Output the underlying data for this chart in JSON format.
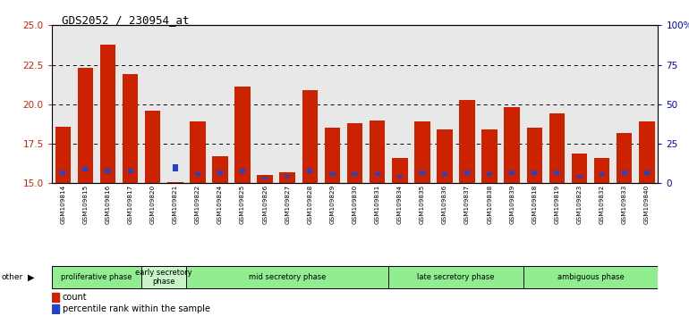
{
  "title": "GDS2052 / 230954_at",
  "samples": [
    "GSM109814",
    "GSM109815",
    "GSM109816",
    "GSM109817",
    "GSM109820",
    "GSM109821",
    "GSM109822",
    "GSM109824",
    "GSM109825",
    "GSM109826",
    "GSM109827",
    "GSM109828",
    "GSM109829",
    "GSM109830",
    "GSM109831",
    "GSM109834",
    "GSM109835",
    "GSM109836",
    "GSM109837",
    "GSM109838",
    "GSM109839",
    "GSM109818",
    "GSM109819",
    "GSM109823",
    "GSM109832",
    "GSM109833",
    "GSM109840"
  ],
  "count_values": [
    18.6,
    22.3,
    23.8,
    21.9,
    19.6,
    15.1,
    18.9,
    16.7,
    21.1,
    15.5,
    15.7,
    20.9,
    18.5,
    18.8,
    19.0,
    16.6,
    18.9,
    18.4,
    20.3,
    18.4,
    19.8,
    18.5,
    19.4,
    16.9,
    16.6,
    18.2,
    18.9
  ],
  "percentile_values": [
    15.55,
    15.75,
    15.65,
    15.65,
    15.45,
    15.75,
    15.45,
    15.55,
    15.65,
    15.25,
    15.35,
    15.65,
    15.45,
    15.45,
    15.45,
    15.35,
    15.55,
    15.45,
    15.55,
    15.45,
    15.55,
    15.55,
    15.55,
    15.35,
    15.45,
    15.55,
    15.55
  ],
  "blue_heights": [
    0.28,
    0.28,
    0.28,
    0.28,
    0.0,
    0.45,
    0.22,
    0.28,
    0.28,
    0.18,
    0.2,
    0.28,
    0.22,
    0.22,
    0.22,
    0.2,
    0.28,
    0.22,
    0.28,
    0.22,
    0.28,
    0.28,
    0.28,
    0.2,
    0.22,
    0.28,
    0.28
  ],
  "ymin": 15.0,
  "ymax": 25.0,
  "yticks": [
    15,
    17.5,
    20,
    22.5,
    25
  ],
  "right_ylabels": [
    "0",
    "25",
    "50",
    "75",
    "100%"
  ],
  "phase_groups": [
    {
      "label": "proliferative phase",
      "start": 0,
      "end": 4,
      "color": "#90ee90"
    },
    {
      "label": "early secretory\nphase",
      "start": 4,
      "end": 6,
      "color": "#c8f5c8"
    },
    {
      "label": "mid secretory phase",
      "start": 6,
      "end": 15,
      "color": "#90ee90"
    },
    {
      "label": "late secretory phase",
      "start": 15,
      "end": 21,
      "color": "#90ee90"
    },
    {
      "label": "ambiguous phase",
      "start": 21,
      "end": 27,
      "color": "#90ee90"
    }
  ],
  "bar_color": "#cc2200",
  "blue_color": "#2244cc",
  "bg_color": "#e8e8e8",
  "left_tick_color": "#cc2200",
  "right_tick_color": "#0000cc",
  "grid_color": "#000000"
}
